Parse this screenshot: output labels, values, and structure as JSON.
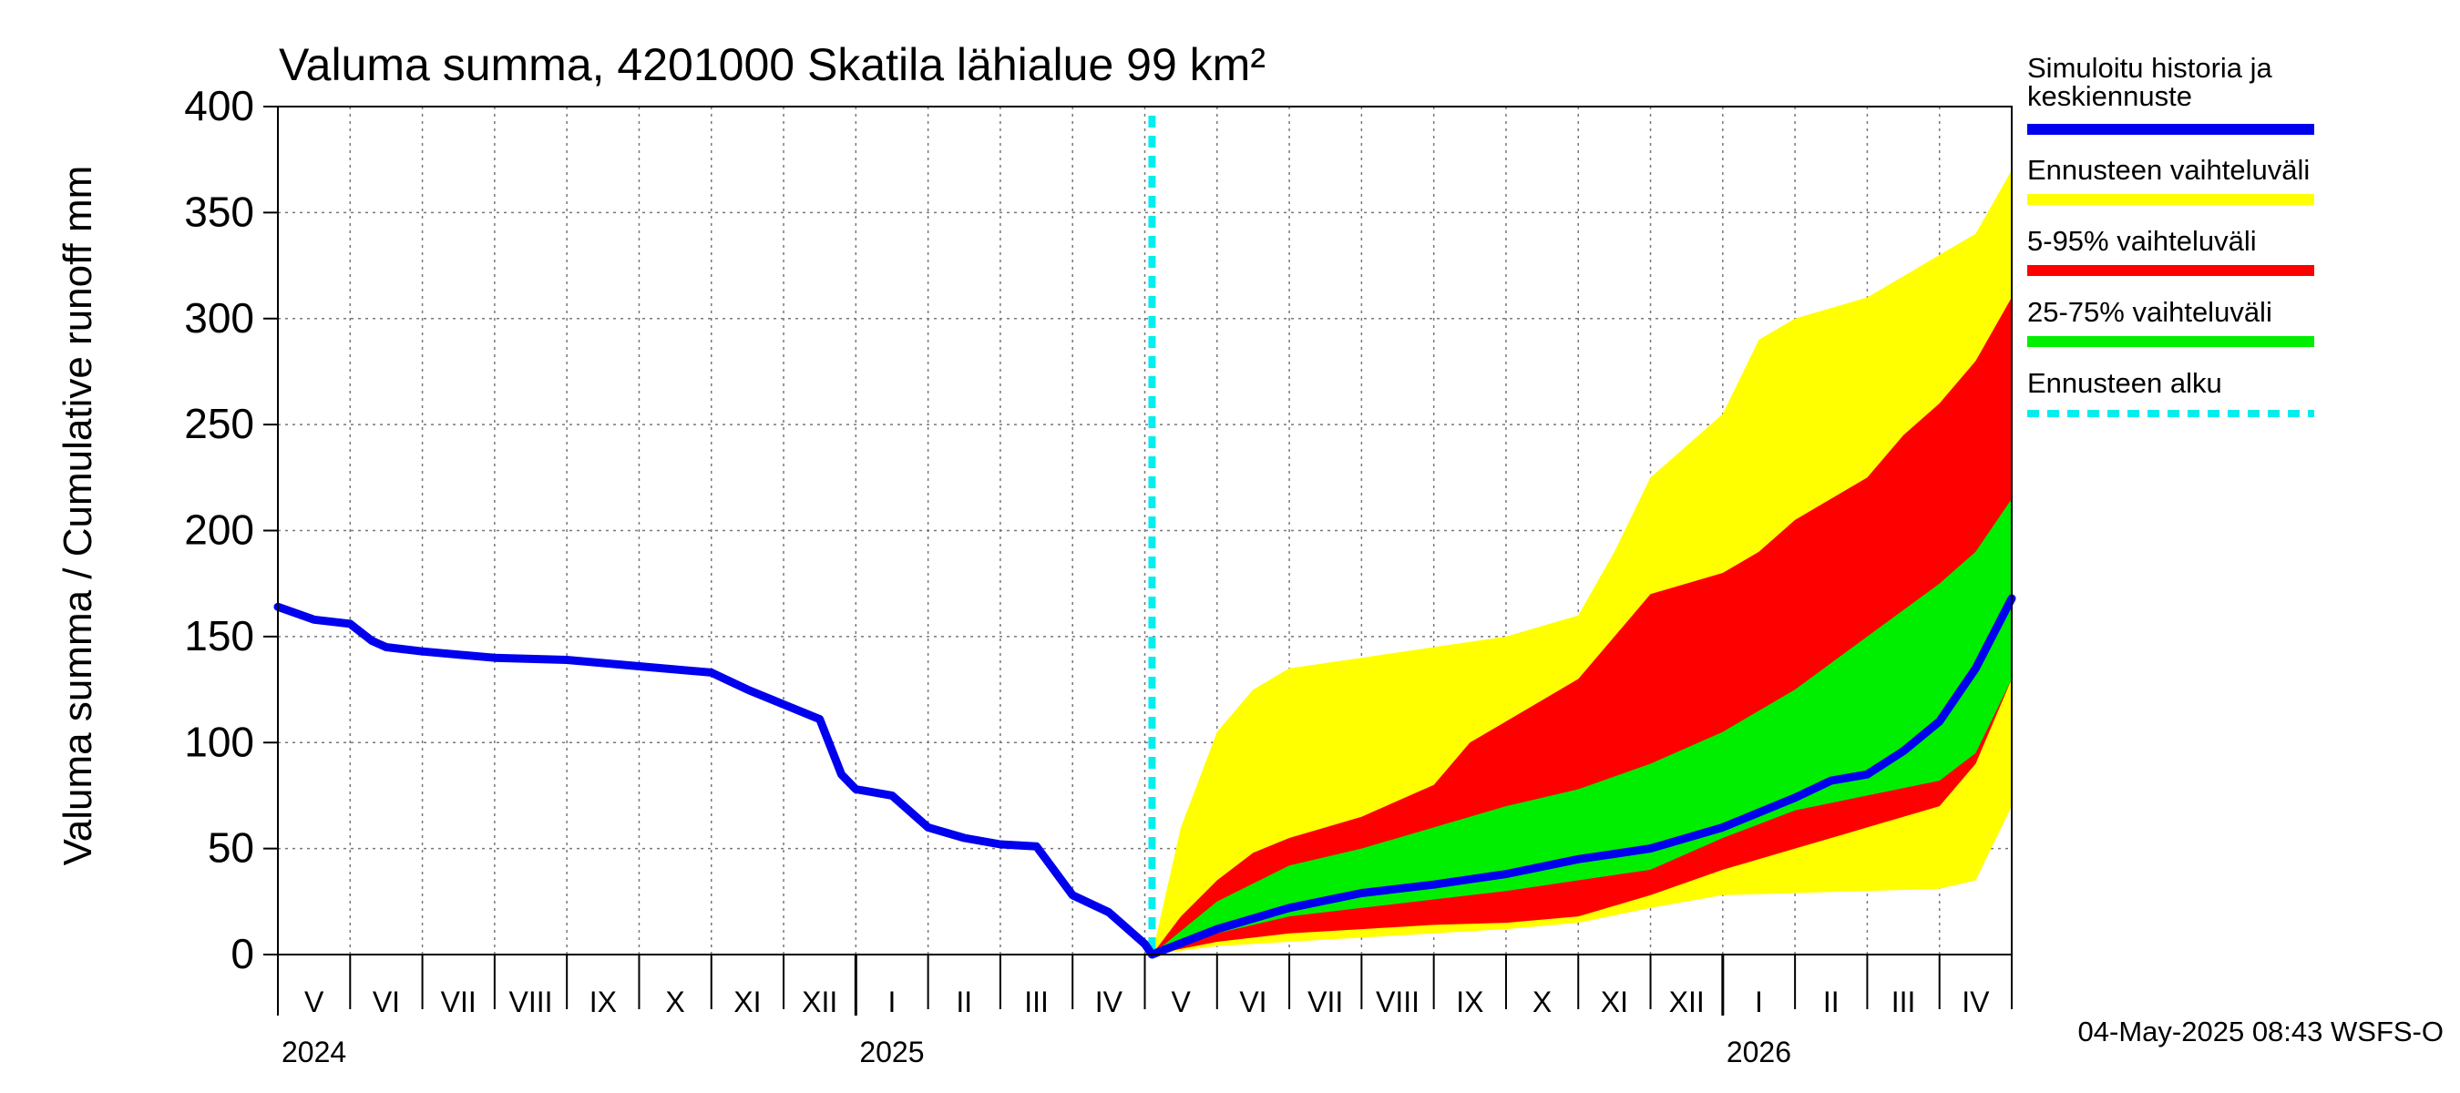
{
  "chart_data": {
    "type": "area",
    "title": "Valuma summa, 4201000 Skatila lähialue 99 km²",
    "ylabel": "Valuma summa / Cumulative runoff    mm",
    "ylim": [
      0,
      400
    ],
    "yticks": [
      "0",
      "50",
      "100",
      "150",
      "200",
      "250",
      "300",
      "350",
      "400"
    ],
    "x_range_months": [
      0,
      24
    ],
    "forecast_start_month": 12.1,
    "month_labels": [
      "V",
      "VI",
      "VII",
      "VIII",
      "IX",
      "X",
      "XI",
      "XII",
      "I",
      "II",
      "III",
      "IV",
      "V",
      "VI",
      "VII",
      "VIII",
      "IX",
      "X",
      "XI",
      "XII",
      "I",
      "II",
      "III",
      "IV"
    ],
    "year_labels": [
      {
        "text": "2024",
        "month": 0
      },
      {
        "text": "2025",
        "month": 8
      },
      {
        "text": "2026",
        "month": 20
      }
    ],
    "timestamp": "04-May-2025 08:43 WSFS-O",
    "colors": {
      "history": "#0000ee",
      "range_full": "#ffff00",
      "range_5_95": "#ff0000",
      "range_25_75": "#00ee00",
      "forecast_start": "#00eeee"
    },
    "legend": [
      {
        "label": "Simuloitu historia ja",
        "label2": "keskiennuste",
        "color": "#0000ee",
        "style": "solid"
      },
      {
        "label": "Ennusteen vaihteluväli",
        "color": "#ffff00",
        "style": "solid"
      },
      {
        "label": "5-95% vaihteluväli",
        "color": "#ff0000",
        "style": "solid"
      },
      {
        "label": "25-75% vaihteluväli",
        "color": "#00ee00",
        "style": "solid"
      },
      {
        "label": "Ennusteen alku",
        "color": "#00eeee",
        "style": "dashed"
      }
    ],
    "series": [
      {
        "name": "Simuloitu historia ja keskiennuste",
        "x": [
          0,
          0.5,
          1,
          1.3,
          1.5,
          2,
          3,
          4,
          5,
          6,
          6.5,
          7,
          7.5,
          7.8,
          8,
          8.5,
          9,
          9.5,
          10,
          10.5,
          11,
          11.5,
          12,
          12.1,
          13,
          14,
          15,
          16,
          17,
          18,
          19,
          20,
          21,
          21.5,
          22,
          22.5,
          23,
          23.5,
          24
        ],
        "y": [
          164,
          158,
          156,
          148,
          145,
          143,
          140,
          139,
          136,
          133,
          125,
          118,
          111,
          85,
          78,
          75,
          60,
          55,
          52,
          51,
          28,
          20,
          5,
          0,
          12,
          22,
          29,
          33,
          38,
          45,
          50,
          60,
          74,
          82,
          85,
          96,
          110,
          135,
          168
        ]
      },
      {
        "name": "Ennusteen vaihteluväli (yläraja)",
        "x": [
          12.1,
          12.5,
          13,
          13.5,
          14,
          15,
          16,
          17,
          18,
          18.5,
          19,
          19.5,
          20,
          20.5,
          21,
          22,
          22.5,
          23,
          23.5,
          24
        ],
        "y": [
          0,
          60,
          105,
          125,
          135,
          140,
          145,
          150,
          160,
          190,
          225,
          240,
          255,
          290,
          300,
          310,
          320,
          330,
          340,
          370
        ]
      },
      {
        "name": "Ennusteen vaihteluväli (alaraja)",
        "x": [
          12.1,
          13,
          14,
          15,
          16,
          17,
          18,
          19,
          20,
          21,
          22,
          23,
          23.5,
          24
        ],
        "y": [
          0,
          4,
          6,
          8,
          10,
          12,
          15,
          22,
          28,
          29,
          30,
          31,
          35,
          70
        ]
      },
      {
        "name": "5-95% yläraja",
        "x": [
          12.1,
          12.5,
          13,
          13.5,
          14,
          15,
          16,
          16.5,
          17,
          18,
          18.5,
          19,
          20,
          20.5,
          21,
          22,
          22.5,
          23,
          23.5,
          24
        ],
        "y": [
          0,
          18,
          35,
          48,
          55,
          65,
          80,
          100,
          110,
          130,
          150,
          170,
          180,
          190,
          205,
          225,
          245,
          260,
          280,
          310
        ]
      },
      {
        "name": "5-95% alaraja",
        "x": [
          12.1,
          13,
          14,
          15,
          16,
          17,
          18,
          19,
          20,
          21,
          22,
          23,
          23.5,
          24
        ],
        "y": [
          0,
          6,
          10,
          12,
          14,
          15,
          18,
          28,
          40,
          50,
          60,
          70,
          90,
          130
        ]
      },
      {
        "name": "25-75% yläraja",
        "x": [
          12.1,
          13,
          14,
          15,
          16,
          17,
          18,
          19,
          20,
          21,
          22,
          23,
          23.5,
          24
        ],
        "y": [
          0,
          25,
          42,
          50,
          60,
          70,
          78,
          90,
          105,
          125,
          150,
          175,
          190,
          215
        ]
      },
      {
        "name": "25-75% alaraja",
        "x": [
          12.1,
          13,
          14,
          15,
          16,
          17,
          18,
          19,
          20,
          21,
          22,
          23,
          23.5,
          24
        ],
        "y": [
          0,
          10,
          18,
          22,
          26,
          30,
          35,
          40,
          55,
          68,
          75,
          82,
          95,
          130
        ]
      }
    ]
  }
}
